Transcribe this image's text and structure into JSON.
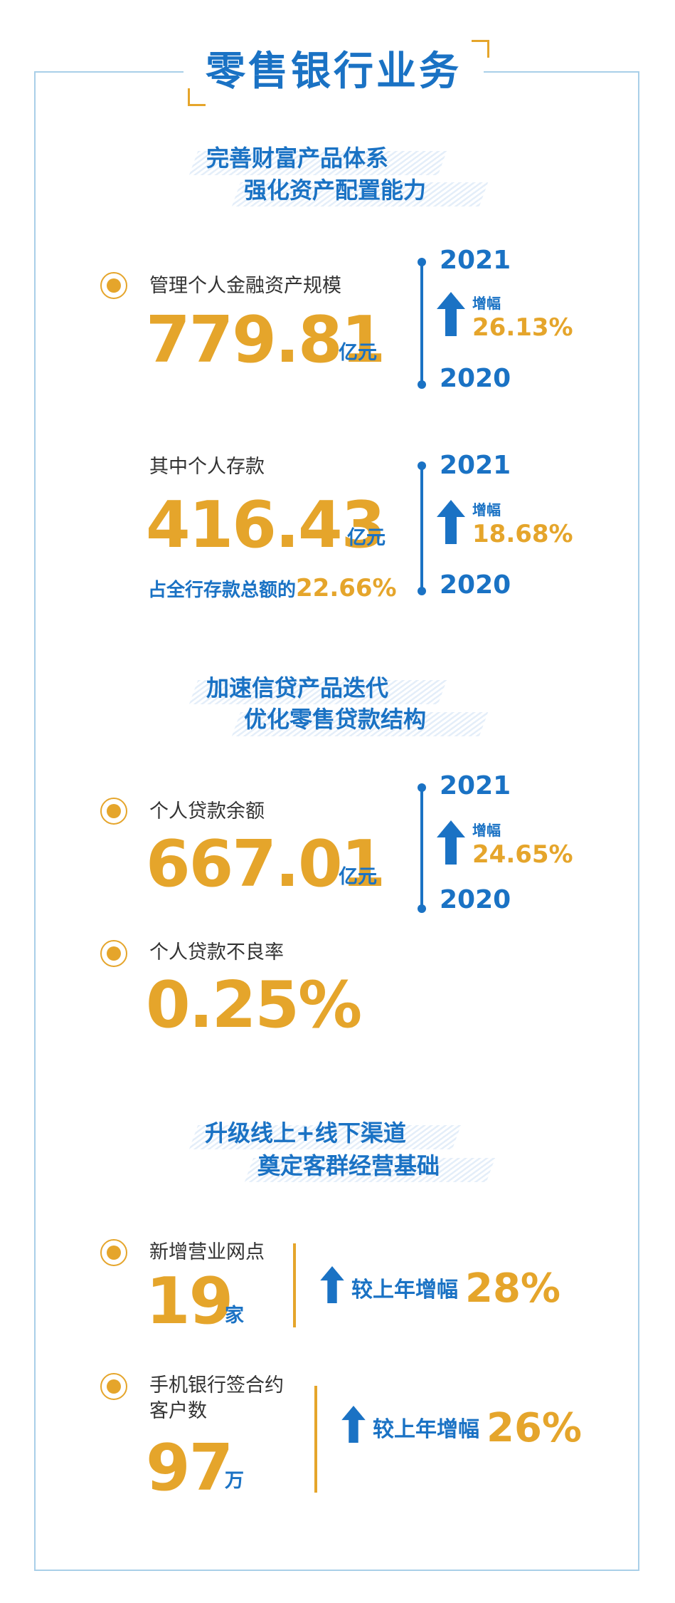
{
  "title": "零售银行业务",
  "colors": {
    "blue": "#1a72c4",
    "gold": "#e5a52b",
    "frame": "#a9cfe8"
  },
  "sections": [
    {
      "line1": "完善财富产品体系",
      "line2": "强化资产配置能力"
    },
    {
      "line1": "加速信贷产品迭代",
      "line2": "优化零售贷款结构"
    },
    {
      "line1": "升级线上+线下渠道",
      "line2": "奠定客群经营基础"
    }
  ],
  "metrics": {
    "assets": {
      "label": "管理个人金融资产规模",
      "value": "779.81",
      "unit": "亿元",
      "year_top": "2021",
      "year_bottom": "2020",
      "growth_label": "增幅",
      "growth": "26.13%"
    },
    "deposits": {
      "label": "其中个人存款",
      "value": "416.43",
      "unit": "亿元",
      "share_text": "占全行存款总额的",
      "share_value": "22.66%",
      "year_top": "2021",
      "year_bottom": "2020",
      "growth_label": "增幅",
      "growth": "18.68%"
    },
    "loans": {
      "label": "个人贷款余额",
      "value": "667.01",
      "unit": "亿元",
      "year_top": "2021",
      "year_bottom": "2020",
      "growth_label": "增幅",
      "growth": "24.65%"
    },
    "npl": {
      "label": "个人贷款不良率",
      "value": "0.25%"
    },
    "outlets": {
      "label": "新增营业网点",
      "value": "19",
      "unit": "家",
      "compare_label": "较上年增幅",
      "compare_value": "28%"
    },
    "mobile": {
      "label_line1": "手机银行签合约",
      "label_line2": "客户数",
      "value": "97",
      "unit": "万",
      "compare_label": "较上年增幅",
      "compare_value": "26%"
    }
  }
}
